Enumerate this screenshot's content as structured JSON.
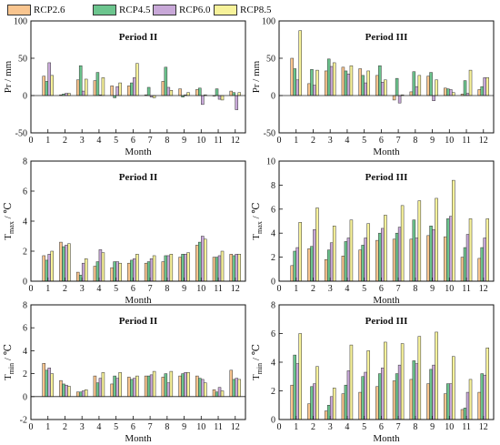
{
  "legend": [
    {
      "name": "RCP2.6",
      "color": "#F9C58F"
    },
    {
      "name": "RCP4.5",
      "color": "#6CC58E"
    },
    {
      "name": "RCP6.0",
      "color": "#C8A8D8"
    },
    {
      "name": "RCP8.5",
      "color": "#F7F29A"
    }
  ],
  "chart_data": [
    {
      "type": "bar",
      "title": "Period II",
      "xlabel": "Month",
      "ylabel": "Pr / mm",
      "ylim": [
        -50,
        100
      ],
      "yticks": [
        -50,
        0,
        50,
        100
      ],
      "xlim": [
        0,
        12.6
      ],
      "xticks": [
        0,
        1,
        2,
        3,
        4,
        5,
        6,
        7,
        8,
        9,
        10,
        11,
        12
      ],
      "categories": [
        1,
        2,
        3,
        4,
        5,
        6,
        7,
        8,
        9,
        10,
        11,
        12
      ],
      "series": [
        {
          "name": "RCP2.6",
          "values": [
            26,
            1,
            21,
            20,
            13,
            13,
            1,
            19,
            9,
            8,
            0,
            6
          ]
        },
        {
          "name": "RCP4.5",
          "values": [
            19,
            2,
            40,
            31,
            -3,
            17,
            11,
            38,
            -2,
            10,
            9,
            4
          ]
        },
        {
          "name": "RCP6.0",
          "values": [
            44,
            3,
            6,
            1,
            12,
            24,
            -2,
            11,
            1,
            -12,
            -5,
            -19
          ]
        },
        {
          "name": "RCP8.5",
          "values": [
            27,
            3,
            22,
            24,
            17,
            43,
            -3,
            7,
            4,
            1,
            -6,
            4
          ]
        }
      ]
    },
    {
      "type": "bar",
      "title": "Period III",
      "xlabel": "Month",
      "ylabel": "Pr / mm",
      "ylim": [
        -50,
        100
      ],
      "yticks": [
        -50,
        0,
        50,
        100
      ],
      "xlim": [
        0,
        12.6
      ],
      "xticks": [
        0,
        1,
        2,
        3,
        4,
        5,
        6,
        7,
        8,
        9,
        10,
        11,
        12
      ],
      "categories": [
        1,
        2,
        3,
        4,
        5,
        6,
        7,
        8,
        9,
        10,
        11,
        12
      ],
      "series": [
        {
          "name": "RCP2.6",
          "values": [
            50,
            16,
            33,
            38,
            36,
            27,
            -6,
            5,
            26,
            10,
            2,
            8
          ]
        },
        {
          "name": "RCP4.5",
          "values": [
            36,
            35,
            49,
            33,
            27,
            40,
            23,
            32,
            31,
            9,
            20,
            12
          ]
        },
        {
          "name": "RCP6.0",
          "values": [
            21,
            14,
            39,
            29,
            17,
            18,
            -10,
            12,
            -7,
            8,
            3,
            24
          ]
        },
        {
          "name": "RCP8.5",
          "values": [
            87,
            34,
            44,
            40,
            33,
            21,
            1,
            27,
            21,
            4,
            34,
            24
          ]
        }
      ]
    },
    {
      "type": "bar",
      "title": "Period II",
      "xlabel": "Month",
      "ylabel_main": "T",
      "ylabel_sub": "max",
      "ylabel_tail": " / ℃",
      "ylim": [
        0,
        8
      ],
      "yticks": [
        0,
        2,
        4,
        6,
        8
      ],
      "xlim": [
        0,
        12.6
      ],
      "xticks": [
        0,
        1,
        2,
        3,
        4,
        5,
        6,
        7,
        8,
        9,
        10,
        11,
        12
      ],
      "categories": [
        1,
        2,
        3,
        4,
        5,
        6,
        7,
        8,
        9,
        10,
        11,
        12
      ],
      "series": [
        {
          "name": "RCP2.6",
          "values": [
            1.7,
            2.6,
            0.6,
            1.0,
            0.9,
            1.2,
            1.2,
            1.3,
            1.6,
            2.4,
            1.6,
            1.8
          ]
        },
        {
          "name": "RCP4.5",
          "values": [
            1.4,
            2.3,
            0.4,
            1.3,
            1.3,
            1.4,
            1.3,
            1.7,
            1.8,
            2.6,
            1.6,
            1.7
          ]
        },
        {
          "name": "RCP6.0",
          "values": [
            1.8,
            2.4,
            1.2,
            2.1,
            1.3,
            1.5,
            1.5,
            1.7,
            1.8,
            3.0,
            1.7,
            1.8
          ]
        },
        {
          "name": "RCP8.5",
          "values": [
            2.0,
            2.5,
            1.5,
            1.9,
            1.2,
            1.8,
            1.7,
            1.8,
            1.9,
            2.8,
            2.0,
            1.8
          ]
        }
      ]
    },
    {
      "type": "bar",
      "title": "Period III",
      "xlabel": "Month",
      "ylabel_main": "T",
      "ylabel_sub": "max",
      "ylabel_tail": " / ℃",
      "ylim": [
        0,
        10
      ],
      "yticks": [
        0,
        2,
        4,
        6,
        8,
        10
      ],
      "xlim": [
        0,
        12.6
      ],
      "xticks": [
        0,
        1,
        2,
        3,
        4,
        5,
        6,
        7,
        8,
        9,
        10,
        11,
        12
      ],
      "categories": [
        1,
        2,
        3,
        4,
        5,
        6,
        7,
        8,
        9,
        10,
        11,
        12
      ],
      "series": [
        {
          "name": "RCP2.6",
          "values": [
            1.3,
            2.7,
            1.8,
            2.1,
            2.6,
            3.4,
            3.5,
            3.5,
            3.8,
            3.7,
            2.0,
            1.9
          ]
        },
        {
          "name": "RCP4.5",
          "values": [
            2.5,
            2.9,
            2.6,
            3.3,
            3.0,
            4.0,
            4.0,
            5.1,
            4.6,
            5.2,
            2.8,
            2.8
          ]
        },
        {
          "name": "RCP6.0",
          "values": [
            2.8,
            4.3,
            3.2,
            3.6,
            3.6,
            4.4,
            4.5,
            3.6,
            4.3,
            5.4,
            3.9,
            3.6
          ]
        },
        {
          "name": "RCP8.5",
          "values": [
            4.9,
            6.1,
            4.6,
            5.1,
            4.8,
            5.5,
            6.3,
            6.7,
            6.9,
            8.4,
            5.2,
            5.2
          ]
        }
      ]
    },
    {
      "type": "bar",
      "title": "Period II",
      "xlabel": "Month",
      "ylabel_main": "T",
      "ylabel_sub": "min",
      "ylabel_tail": " / ℃",
      "ylim": [
        -2,
        8
      ],
      "yticks": [
        -2,
        0,
        2,
        4,
        6,
        8
      ],
      "xlim": [
        0,
        12.6
      ],
      "xticks": [
        0,
        1,
        2,
        3,
        4,
        5,
        6,
        7,
        8,
        9,
        10,
        11,
        12
      ],
      "categories": [
        1,
        2,
        3,
        4,
        5,
        6,
        7,
        8,
        9,
        10,
        11,
        12
      ],
      "series": [
        {
          "name": "RCP2.6",
          "values": [
            2.9,
            1.4,
            0.4,
            1.8,
            1.1,
            1.7,
            1.8,
            1.7,
            1.8,
            1.8,
            0.6,
            2.3
          ]
        },
        {
          "name": "RCP4.5",
          "values": [
            2.3,
            1.1,
            0.4,
            1.2,
            1.8,
            1.5,
            1.8,
            2.0,
            2.0,
            1.6,
            0.4,
            1.5
          ]
        },
        {
          "name": "RCP6.0",
          "values": [
            2.5,
            1.0,
            0.5,
            1.6,
            1.6,
            1.6,
            1.9,
            1.2,
            2.1,
            1.5,
            0.8,
            1.6
          ]
        },
        {
          "name": "RCP8.5",
          "values": [
            2.0,
            0.9,
            0.6,
            2.1,
            2.1,
            1.8,
            2.2,
            2.2,
            2.1,
            1.2,
            0.5,
            1.5
          ]
        }
      ]
    },
    {
      "type": "bar",
      "title": "Period III",
      "xlabel": "Month",
      "ylabel_main": "T",
      "ylabel_sub": "min",
      "ylabel_tail": " / ℃",
      "ylim": [
        0,
        8
      ],
      "yticks": [
        0,
        2,
        4,
        6,
        8
      ],
      "xlim": [
        0,
        12.6
      ],
      "xticks": [
        0,
        1,
        2,
        3,
        4,
        5,
        6,
        7,
        8,
        9,
        10,
        11,
        12
      ],
      "categories": [
        1,
        2,
        3,
        4,
        5,
        6,
        7,
        8,
        9,
        10,
        11,
        12
      ],
      "series": [
        {
          "name": "RCP2.6",
          "values": [
            2.4,
            1.1,
            0.6,
            1.8,
            1.9,
            2.3,
            2.7,
            2.8,
            2.5,
            1.8,
            0.7,
            1.9
          ]
        },
        {
          "name": "RCP4.5",
          "values": [
            4.5,
            2.3,
            1.0,
            2.4,
            3.0,
            3.2,
            3.2,
            4.1,
            3.5,
            2.5,
            0.8,
            3.2
          ]
        },
        {
          "name": "RCP6.0",
          "values": [
            3.9,
            2.5,
            1.6,
            3.4,
            3.3,
            3.6,
            3.8,
            3.9,
            3.8,
            2.5,
            1.9,
            3.1
          ]
        },
        {
          "name": "RCP8.5",
          "values": [
            6.0,
            3.7,
            2.2,
            5.2,
            4.8,
            5.4,
            5.3,
            5.8,
            6.1,
            4.4,
            2.8,
            5.0
          ]
        }
      ]
    }
  ]
}
